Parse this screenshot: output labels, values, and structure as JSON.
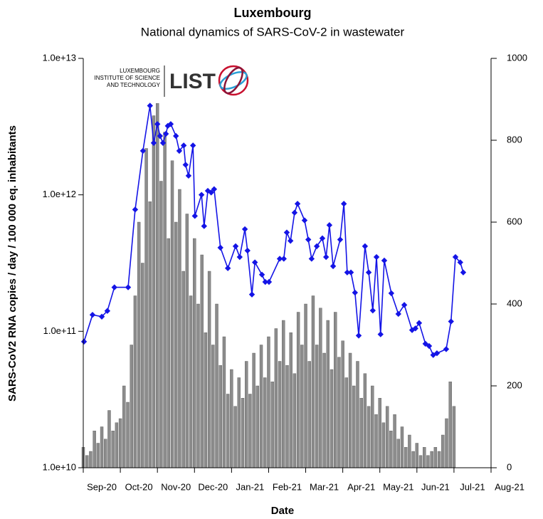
{
  "chart_data": {
    "type": "combo",
    "title": "Luxembourg",
    "subtitle": "National dynamics of SARS-CoV-2 in wastewater",
    "y_label": "SARS-CoV2 RNA copies / day  / 100 000 eq. inhabitants",
    "x_label": "Date",
    "xlim": [
      0,
      11
    ],
    "xticks": [
      {
        "value": 0,
        "label": "Sep-20"
      },
      {
        "value": 1,
        "label": "Oct-20"
      },
      {
        "value": 2,
        "label": "Nov-20"
      },
      {
        "value": 3,
        "label": "Dec-20"
      },
      {
        "value": 4,
        "label": "Jan-21"
      },
      {
        "value": 5,
        "label": "Feb-21"
      },
      {
        "value": 6,
        "label": "Mar-21"
      },
      {
        "value": 7,
        "label": "Apr-21"
      },
      {
        "value": 8,
        "label": "May-21"
      },
      {
        "value": 9,
        "label": "Jun-21"
      },
      {
        "value": 10,
        "label": "Jul-21"
      },
      {
        "value": 11,
        "label": "Aug-21"
      }
    ],
    "ylim": [
      10000000000,
      10000000000000
    ],
    "log_scale_y": true,
    "yticks": [
      {
        "value": 10000000000,
        "label": "1.0e+10"
      },
      {
        "value": 100000000000,
        "label": "1.0e+11"
      },
      {
        "value": 1000000000000,
        "label": "1.0e+12"
      },
      {
        "value": 10000000000000,
        "label": "1.0e+13"
      }
    ],
    "y2lim": [
      0,
      1000
    ],
    "y2ticks": [
      0,
      200,
      400,
      600,
      800,
      1000
    ],
    "series": [
      {
        "type": "bar",
        "axis": "y2",
        "color": "#8c8c8c",
        "x": [
          0,
          0.1,
          0.2,
          0.3,
          0.4,
          0.5,
          0.6,
          0.7,
          0.8,
          0.9,
          1,
          1.1,
          1.2,
          1.3,
          1.4,
          1.5,
          1.6,
          1.7,
          1.8,
          1.9,
          2,
          2.1,
          2.2,
          2.3,
          2.4,
          2.5,
          2.6,
          2.7,
          2.8,
          2.9,
          3,
          3.1,
          3.2,
          3.3,
          3.4,
          3.5,
          3.6,
          3.7,
          3.8,
          3.9,
          4,
          4.1,
          4.2,
          4.3,
          4.4,
          4.5,
          4.6,
          4.7,
          4.8,
          4.9,
          5,
          5.1,
          5.2,
          5.3,
          5.4,
          5.5,
          5.6,
          5.7,
          5.8,
          5.9,
          6,
          6.1,
          6.2,
          6.3,
          6.4,
          6.5,
          6.6,
          6.7,
          6.8,
          6.9,
          7,
          7.1,
          7.2,
          7.3,
          7.4,
          7.5,
          7.6,
          7.7,
          7.8,
          7.9,
          8,
          8.1,
          8.2,
          8.3,
          8.4,
          8.5,
          8.6,
          8.7,
          8.8,
          8.9,
          9,
          9.1,
          9.2,
          9.3,
          9.4,
          9.5,
          9.6,
          9.7,
          9.8,
          9.9,
          10
        ],
        "values": [
          50,
          30,
          40,
          90,
          60,
          100,
          70,
          140,
          90,
          110,
          120,
          200,
          160,
          300,
          420,
          600,
          500,
          780,
          650,
          860,
          890,
          700,
          820,
          560,
          750,
          600,
          680,
          480,
          620,
          420,
          560,
          400,
          520,
          330,
          480,
          300,
          400,
          250,
          320,
          180,
          240,
          150,
          220,
          170,
          260,
          180,
          280,
          200,
          300,
          220,
          320,
          210,
          340,
          260,
          360,
          250,
          330,
          230,
          380,
          300,
          400,
          260,
          420,
          300,
          390,
          280,
          360,
          240,
          380,
          270,
          310,
          220,
          280,
          200,
          260,
          170,
          230,
          150,
          200,
          130,
          170,
          110,
          150,
          90,
          130,
          70,
          100,
          50,
          80,
          40,
          60,
          30,
          50,
          30,
          40,
          50,
          40,
          80,
          120,
          210,
          150
        ]
      },
      {
        "type": "line",
        "axis": "y",
        "color": "#1414e6",
        "x": [
          0.02,
          0.25,
          0.5,
          0.65,
          0.84,
          1.21,
          1.4,
          1.61,
          1.8,
          1.9,
          2.0,
          2.07,
          2.15,
          2.23,
          2.28,
          2.36,
          2.5,
          2.59,
          2.71,
          2.76,
          2.84,
          2.96,
          3.01,
          3.19,
          3.26,
          3.36,
          3.45,
          3.53,
          3.7,
          3.9,
          4.11,
          4.22,
          4.36,
          4.43,
          4.55,
          4.63,
          4.82,
          4.91,
          5.01,
          5.3,
          5.41,
          5.49,
          5.59,
          5.7,
          5.78,
          5.97,
          6.07,
          6.16,
          6.3,
          6.45,
          6.55,
          6.64,
          6.74,
          6.93,
          7.03,
          7.12,
          7.22,
          7.33,
          7.43,
          7.6,
          7.7,
          7.81,
          7.91,
          8.02,
          8.12,
          8.31,
          8.5,
          8.66,
          8.87,
          8.96,
          9.06,
          9.23,
          9.33,
          9.44,
          9.54,
          9.79,
          9.92,
          10.04,
          10.17,
          10.25
        ],
        "values": [
          84000000000,
          132000000000,
          128000000000,
          141000000000,
          210000000000,
          210000000000,
          780000000000,
          2100000000000,
          4500000000000,
          2400000000000,
          3300000000000,
          2700000000000,
          2400000000000,
          2800000000000,
          3200000000000,
          3300000000000,
          2700000000000,
          2100000000000,
          2300000000000,
          1660000000000,
          1380000000000,
          2300000000000,
          700000000000,
          1000000000000,
          590000000000,
          1070000000000,
          1040000000000,
          1100000000000,
          410000000000,
          290000000000,
          420000000000,
          350000000000,
          560000000000,
          390000000000,
          186000000000,
          320000000000,
          260000000000,
          230000000000,
          230000000000,
          340000000000,
          340000000000,
          530000000000,
          460000000000,
          740000000000,
          860000000000,
          650000000000,
          470000000000,
          340000000000,
          420000000000,
          480000000000,
          350000000000,
          600000000000,
          300000000000,
          470000000000,
          860000000000,
          270000000000,
          270000000000,
          192000000000,
          93000000000,
          420000000000,
          270000000000,
          142000000000,
          350000000000,
          95000000000,
          330000000000,
          190000000000,
          134000000000,
          156000000000,
          102000000000,
          105000000000,
          115000000000,
          81000000000,
          78000000000,
          67000000000,
          69000000000,
          74000000000,
          118000000000,
          350000000000,
          320000000000,
          270000000000
        ]
      }
    ]
  },
  "logo": {
    "lines": [
      "LUXEMBOURG",
      "INSTITUTE OF SCIENCE",
      "AND TECHNOLOGY"
    ],
    "name": "LIST"
  }
}
